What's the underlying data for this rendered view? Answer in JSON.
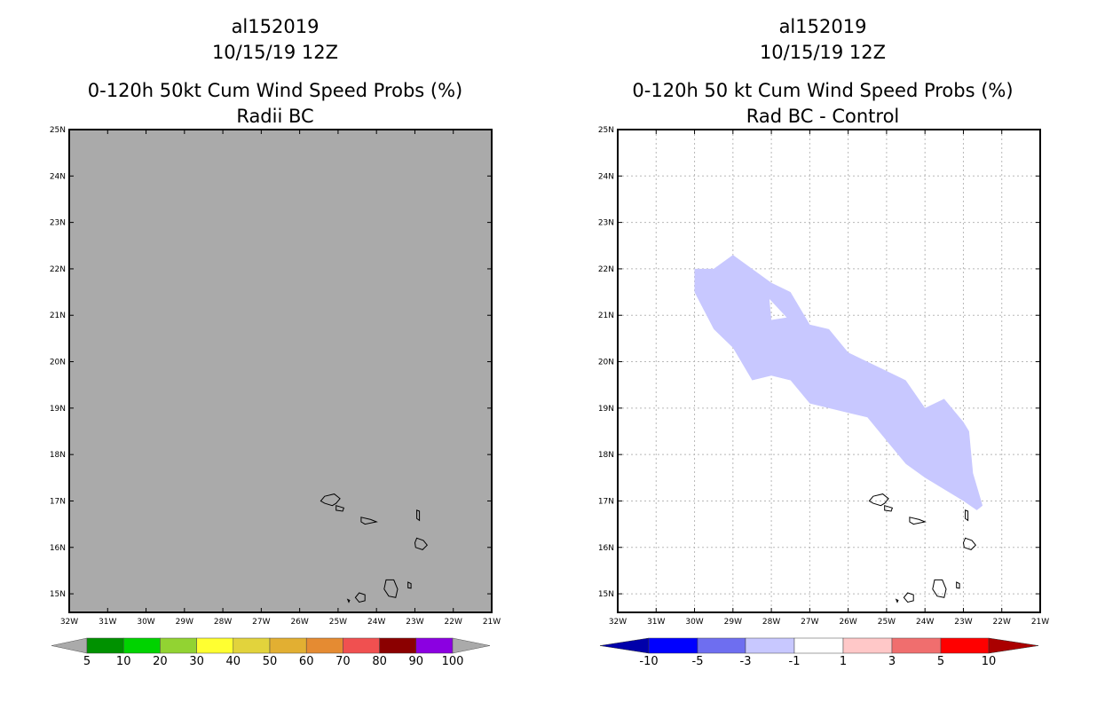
{
  "left_panel": {
    "storm_id": "al152019",
    "datetime": "10/15/19 12Z",
    "title": "0-120h 50kt Cum Wind Speed Probs (%)",
    "subtitle": "Radii BC",
    "background_fill": "#aaaaaa",
    "colorbar": {
      "labels": [
        "5",
        "10",
        "20",
        "30",
        "40",
        "50",
        "60",
        "70",
        "80",
        "90",
        "100"
      ],
      "colors": [
        "#009100",
        "#00d300",
        "#92d332",
        "#ffff31",
        "#e2d33c",
        "#e2af32",
        "#e58b32",
        "#f05050",
        "#8b0000",
        "#8b00e1"
      ],
      "arrow_color": "#aaaaaa"
    }
  },
  "right_panel": {
    "storm_id": "al152019",
    "datetime": "10/15/19 12Z",
    "title": "0-120h 50 kt Cum Wind Speed Probs (%)",
    "subtitle": "Rad BC - Control",
    "region_value_range": "-3 to -1",
    "region_color": "#c8c8ff",
    "colorbar": {
      "labels": [
        "-10",
        "-5",
        "-3",
        "-1",
        "1",
        "3",
        "5",
        "10"
      ],
      "colors": [
        "#0000aa",
        "#0000ff",
        "#6e6ef0",
        "#c8c8ff",
        "#ffffff",
        "#ffc8c8",
        "#f06e6e",
        "#ff0000",
        "#aa0000"
      ],
      "left_arrow_color": "#0000aa",
      "right_arrow_color": "#aa0000"
    }
  },
  "map": {
    "lat_labels": [
      "25N",
      "24N",
      "23N",
      "22N",
      "21N",
      "20N",
      "19N",
      "18N",
      "17N",
      "16N",
      "15N"
    ],
    "lon_labels": [
      "32W",
      "31W",
      "30W",
      "29W",
      "28W",
      "27W",
      "26W",
      "25W",
      "24W",
      "23W",
      "22W",
      "21W"
    ],
    "region_outline_lonlat": [
      [
        30,
        22
      ],
      [
        29.5,
        22
      ],
      [
        29,
        22.3
      ],
      [
        28,
        21.7
      ],
      [
        27.5,
        21.5
      ],
      [
        27,
        20.8
      ],
      [
        26.5,
        20.7
      ],
      [
        26,
        20.2
      ],
      [
        25,
        19.8
      ],
      [
        24.5,
        19.6
      ],
      [
        24,
        19
      ],
      [
        23.5,
        19.2
      ],
      [
        23,
        18.7
      ],
      [
        22.85,
        18.5
      ],
      [
        22.75,
        17.6
      ],
      [
        22.5,
        16.9
      ],
      [
        22.65,
        16.8
      ],
      [
        23,
        17
      ],
      [
        24,
        17.5
      ],
      [
        24.5,
        17.8
      ],
      [
        25,
        18.3
      ],
      [
        25.5,
        18.8
      ],
      [
        26,
        18.9
      ],
      [
        27,
        19.1
      ],
      [
        27.5,
        19.6
      ],
      [
        28,
        19.7
      ],
      [
        28.5,
        19.6
      ],
      [
        29,
        20.3
      ],
      [
        29.5,
        20.7
      ],
      [
        30,
        21.5
      ]
    ],
    "region_hole_lonlat": [
      [
        28.05,
        21.35
      ],
      [
        27.6,
        20.95
      ],
      [
        28.0,
        20.9
      ]
    ]
  }
}
